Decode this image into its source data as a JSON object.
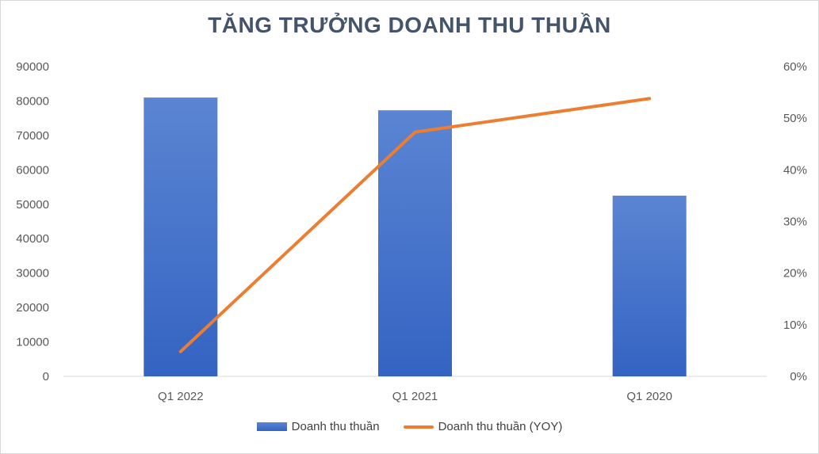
{
  "chart_data": {
    "type": "bar",
    "title": "TĂNG TRƯỞNG DOANH THU THUẦN",
    "categories": [
      "Q1 2022",
      "Q1 2021",
      "Q1 2020"
    ],
    "series": [
      {
        "name": "Doanh thu thuần",
        "type": "bar",
        "axis": "left",
        "values": [
          81000,
          77300,
          52500
        ]
      },
      {
        "name": "Doanh thu thuần (YOY)",
        "type": "line",
        "axis": "right",
        "values": [
          0.048,
          0.473,
          0.538
        ]
      }
    ],
    "y_left": {
      "min": 0,
      "max": 90000,
      "step": 10000,
      "ticks": [
        "0",
        "10000",
        "20000",
        "30000",
        "40000",
        "50000",
        "60000",
        "70000",
        "80000",
        "90000"
      ]
    },
    "y_right": {
      "min": 0,
      "max": 0.6,
      "step": 0.1,
      "ticks": [
        "0%",
        "10%",
        "20%",
        "30%",
        "40%",
        "50%",
        "60%"
      ]
    },
    "grid": false,
    "legend_position": "bottom",
    "colors": {
      "bar_top": "#5b85d3",
      "bar_bottom": "#3463c2",
      "line": "#ed7d31",
      "title": "#44546a"
    }
  }
}
